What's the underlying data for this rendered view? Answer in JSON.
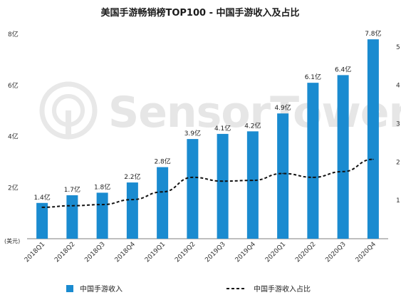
{
  "chart_data": {
    "type": "bar",
    "title": "美国手游畅销榜TOP100 - 中国手游收入及占比",
    "watermark": "SensorTower",
    "y_unit_label": "(美元)",
    "ylim": [
      0,
      8
    ],
    "y_tick_values": [
      2,
      4,
      6,
      8
    ],
    "y_tick_labels": [
      "2亿",
      "4亿",
      "6亿",
      "8亿"
    ],
    "y2_tick_values": [
      1,
      2,
      3,
      4,
      5
    ],
    "y2_tick_labels": [
      "1",
      "2",
      "3",
      "4",
      "5"
    ],
    "y2lim": [
      0,
      5.33
    ],
    "categories": [
      "2018Q1",
      "2018Q2",
      "2018Q3",
      "2018Q4",
      "2019Q1",
      "2019Q2",
      "2019Q3",
      "2019Q4",
      "2020Q1",
      "2020Q2",
      "2020Q3",
      "2020Q4"
    ],
    "series": [
      {
        "name": "中国手游收入",
        "type": "bar",
        "color": "#1a8bd0",
        "values": [
          1.4,
          1.7,
          1.8,
          2.2,
          2.8,
          3.9,
          4.1,
          4.2,
          4.9,
          6.1,
          6.4,
          7.8
        ],
        "labels": [
          "1.4亿",
          "1.7亿",
          "1.8亿",
          "2.2亿",
          "2.8亿",
          "3.9亿",
          "4.1亿",
          "4.2亿",
          "4.9亿",
          "6.1亿",
          "6.4亿",
          "7.8亿"
        ]
      },
      {
        "name": "中国手游收入占比",
        "type": "line",
        "style": "dashed",
        "color": "#111111",
        "axis": "right",
        "values": [
          0.82,
          0.86,
          0.89,
          1.02,
          1.22,
          1.6,
          1.5,
          1.52,
          1.7,
          1.6,
          1.75,
          2.07
        ]
      }
    ],
    "legend_position": "bottom-left",
    "grid": "none"
  }
}
